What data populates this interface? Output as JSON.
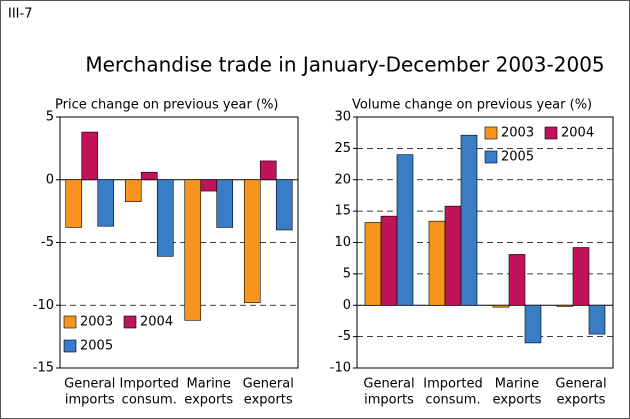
{
  "figure_label": "III-7",
  "title": "Merchandise trade in January-December 2003-2005",
  "chart_data": [
    {
      "type": "bar",
      "title": "Price change on previous year (%)",
      "categories": [
        [
          "General",
          "imports"
        ],
        [
          "Imported",
          "consum."
        ],
        [
          "Marine",
          "exports"
        ],
        [
          "General",
          "exports"
        ]
      ],
      "series": [
        {
          "name": "2003",
          "color": "#f7941d",
          "values": [
            -3.8,
            -1.75,
            -11.2,
            -9.8
          ]
        },
        {
          "name": "2004",
          "color": "#c0145a",
          "values": [
            3.8,
            0.6,
            -0.9,
            1.5
          ]
        },
        {
          "name": "2005",
          "color": "#3a7cc8",
          "values": [
            -3.7,
            -6.1,
            -3.8,
            -4.0
          ]
        }
      ],
      "ylim": [
        -15,
        5
      ],
      "yticks": [
        5,
        0,
        -5,
        -10,
        -15
      ],
      "grid": true,
      "legend": "lower left"
    },
    {
      "type": "bar",
      "title": "Volume change on previous year (%)",
      "categories": [
        [
          "General",
          "imports"
        ],
        [
          "Imported",
          "consum."
        ],
        [
          "Marine",
          "exports"
        ],
        [
          "General",
          "exports"
        ]
      ],
      "series": [
        {
          "name": "2003",
          "color": "#f7941d",
          "values": [
            13.2,
            13.4,
            -0.3,
            -0.2
          ]
        },
        {
          "name": "2004",
          "color": "#c0145a",
          "values": [
            14.2,
            15.8,
            8.1,
            9.2
          ]
        },
        {
          "name": "2005",
          "color": "#3a7cc8",
          "values": [
            24,
            27.1,
            -6,
            -4.6
          ]
        }
      ],
      "ylim": [
        -10,
        30
      ],
      "yticks": [
        30,
        25,
        20,
        15,
        10,
        5,
        0,
        -5,
        -10
      ],
      "grid": true,
      "legend": "upper right"
    }
  ]
}
